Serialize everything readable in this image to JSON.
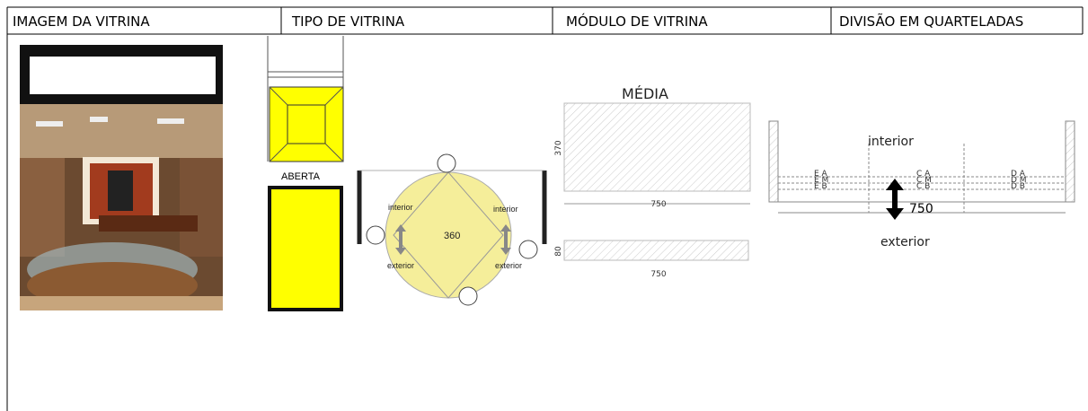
{
  "table": {
    "headers": [
      "IMAGEM DA VITRINA",
      "TIPO DE VITRINA",
      "MÓDULO DE VITRINA",
      "DIVISÃO EM QUARTELADAS"
    ]
  },
  "tipo": {
    "label": "ABERTA",
    "rotation": {
      "center": 360,
      "sides": [
        {
          "top": "interior",
          "bottom": "exterior"
        },
        {
          "top": "interior",
          "bottom": "exterior"
        }
      ]
    }
  },
  "modulo": {
    "title": "MÉDIA",
    "front": {
      "height": 370,
      "width": 750
    },
    "base": {
      "height": 80,
      "width": 750
    }
  },
  "divisao": {
    "top": "interior",
    "bottom": "exterior",
    "depth": 750,
    "columns": [
      [
        "E A",
        "E M",
        "E B"
      ],
      [
        "C A",
        "C M",
        "C B"
      ],
      [
        "D A",
        "D M",
        "D B"
      ]
    ]
  }
}
